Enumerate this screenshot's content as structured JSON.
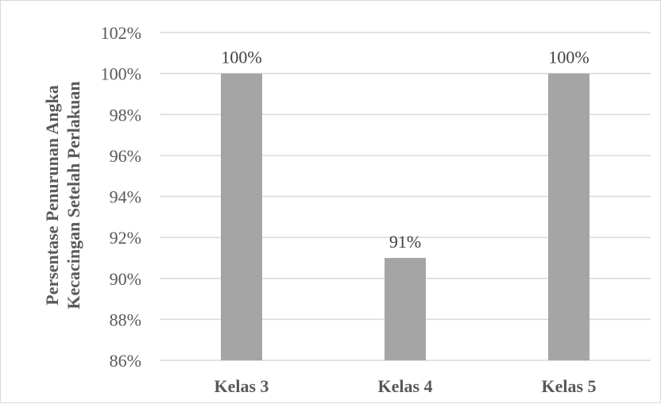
{
  "chart_data": {
    "type": "bar",
    "categories": [
      "Kelas 3",
      "Kelas 4",
      "Kelas 5"
    ],
    "values": [
      100,
      91,
      100
    ],
    "data_labels": [
      "100%",
      "91%",
      "100%"
    ],
    "ylabel_lines": [
      "Persentase Penurunan Angka",
      "Kecacingan Setelah Perlakuan"
    ],
    "xlabel": "",
    "ylim": [
      86,
      102
    ],
    "y_ticks": [
      86,
      88,
      90,
      92,
      94,
      96,
      98,
      100,
      102
    ],
    "y_tick_labels": [
      "86%",
      "88%",
      "90%",
      "92%",
      "94%",
      "96%",
      "98%",
      "100%",
      "102%"
    ],
    "grid": true,
    "legend": "none",
    "colors": {
      "bar": "#a5a5a5",
      "grid": "#d9d9d9",
      "text": "#595959"
    }
  }
}
